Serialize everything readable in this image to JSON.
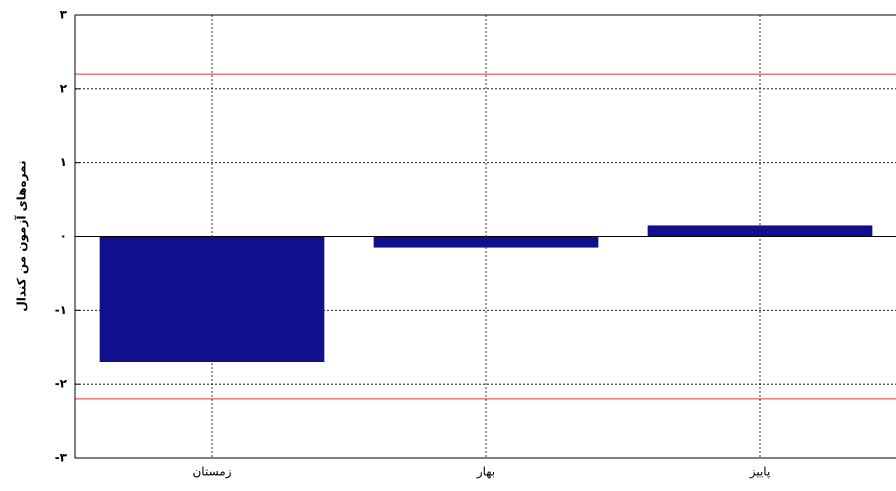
{
  "chart_data": {
    "type": "bar",
    "y_label": "نمره‌های آزمون من کندال",
    "categories": [
      "زمستان",
      "بهار",
      "پاییز"
    ],
    "values": [
      -1.7,
      -0.15,
      0.15
    ],
    "color": "#10108c",
    "ylim": [
      -3,
      3
    ],
    "yticks": [
      {
        "value": -3,
        "label": "-۳"
      },
      {
        "value": -2,
        "label": "-۲"
      },
      {
        "value": -1,
        "label": "-۱"
      },
      {
        "value": 0,
        "label": "۰"
      },
      {
        "value": 1,
        "label": "۱"
      },
      {
        "value": 2,
        "label": "۲"
      },
      {
        "value": 3,
        "label": "۳"
      }
    ],
    "reference_lines": [
      2.2,
      -2.2
    ],
    "reference_color": "#e8302a",
    "grid": true
  }
}
